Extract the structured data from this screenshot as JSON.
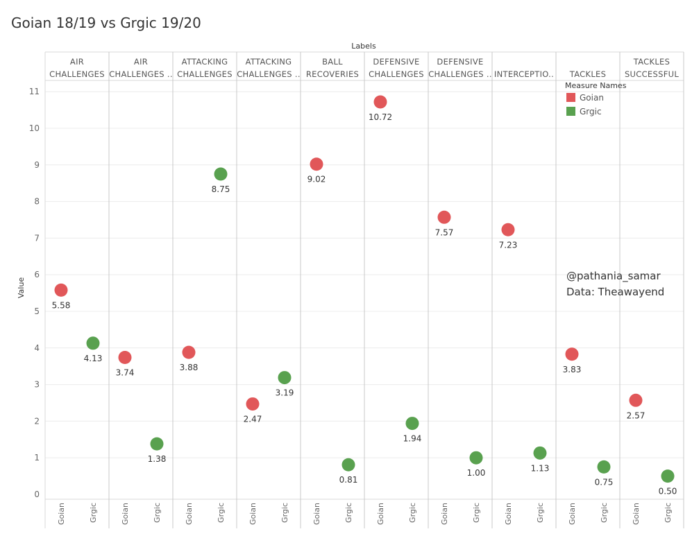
{
  "chart_data": {
    "type": "scatter",
    "title": "Goian 18/19 vs Grgic 19/20",
    "xlabel": "Labels",
    "ylabel": "Value",
    "ylim": [
      0,
      11.5
    ],
    "yticks": [
      "0",
      "1",
      "2",
      "3",
      "4",
      "5",
      "6",
      "7",
      "8",
      "9",
      "10",
      "11"
    ],
    "categories": [
      [
        "AIR",
        "CHALLENGES"
      ],
      [
        "AIR",
        "CHALLENGES .."
      ],
      [
        "ATTACKING",
        "CHALLENGES"
      ],
      [
        "ATTACKING",
        "CHALLENGES .."
      ],
      [
        "BALL",
        "RECOVERIES"
      ],
      [
        "DEFENSIVE",
        "CHALLENGES"
      ],
      [
        "DEFENSIVE",
        "CHALLENGES .."
      ],
      [
        "INTERCEPTIO.."
      ],
      [
        "TACKLES"
      ],
      [
        "TACKLES",
        "SUCCESSFUL"
      ]
    ],
    "series": [
      {
        "name": "Goian",
        "color": "#e15759",
        "values": [
          5.58,
          3.74,
          3.88,
          2.47,
          9.02,
          10.72,
          7.57,
          7.23,
          3.83,
          2.57
        ],
        "labels": [
          "5.58",
          "3.74",
          "3.88",
          "2.47",
          "9.02",
          "10.72",
          "7.57",
          "7.23",
          "3.83",
          "2.57"
        ]
      },
      {
        "name": "Grgic",
        "color": "#59a14f",
        "values": [
          4.13,
          1.38,
          8.75,
          3.19,
          0.81,
          1.94,
          1.0,
          1.13,
          0.75,
          0.5
        ],
        "labels": [
          "4.13",
          "1.38",
          "8.75",
          "3.19",
          "0.81",
          "1.94",
          "1.00",
          "1.13",
          "0.75",
          "0.50"
        ]
      }
    ],
    "legend": {
      "title": "Measure Names",
      "position": "top-right"
    },
    "annotations": [
      "@pathania_samar",
      "Data: Theawayend"
    ]
  }
}
